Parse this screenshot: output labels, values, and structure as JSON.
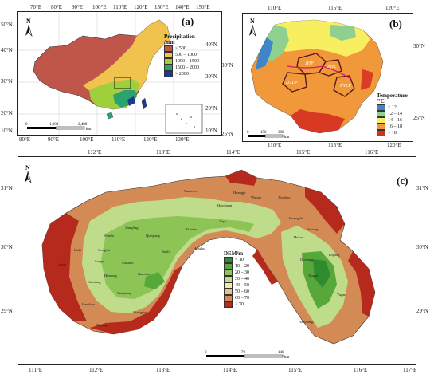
{
  "panels": {
    "a": {
      "label": "(a)",
      "top_coords": [
        "70°E",
        "80°E",
        "90°E",
        "100°E",
        "110°E",
        "120°E",
        "130°E",
        "140°E",
        "150°E"
      ],
      "bottom_coords": [
        "80°E",
        "90°E",
        "100°E",
        "110°E",
        "120°E",
        "130°E"
      ],
      "left_coords": [
        "50°N",
        "40°N",
        "30°N",
        "20°N",
        "10°N"
      ],
      "right_coords": [
        "40°N",
        "30°N",
        "20°N",
        "10°N"
      ],
      "legend": {
        "title": "Precipitation\n/mm",
        "items": [
          {
            "label": "< 500",
            "color": "#c0554a"
          },
          {
            "label": "500 – 1000",
            "color": "#f0c34e"
          },
          {
            "label": "1000 – 1500",
            "color": "#9fcf3c"
          },
          {
            "label": "1500 – 2000",
            "color": "#2aa36e"
          },
          {
            "label": "> 2000",
            "color": "#1f3a8c"
          }
        ]
      },
      "scale": {
        "labels": [
          "0",
          "1,200",
          "2,400"
        ],
        "unit": "km"
      },
      "north": "N"
    },
    "b": {
      "label": "(b)",
      "top_coords": [
        "110°E",
        "115°E",
        "120°E"
      ],
      "bottom_coords": [
        "110°E",
        "115°E",
        "120°E"
      ],
      "left_coords": [
        "30°N",
        "25°N"
      ],
      "right_coords": [
        "30°N",
        "25°N"
      ],
      "regions": [
        "JHP",
        "DTLP",
        "EHL",
        "PYLP"
      ],
      "legend": {
        "title": "Temperature\n/°C",
        "items": [
          {
            "label": "< 12",
            "color": "#3f86c9"
          },
          {
            "label": "12 – 14",
            "color": "#8fcf8f"
          },
          {
            "label": "14 – 16",
            "color": "#f7ef5f"
          },
          {
            "label": "16 – 18",
            "color": "#f0983a"
          },
          {
            "label": "> 18",
            "color": "#d62d20"
          }
        ]
      },
      "scale": {
        "labels": [
          "0",
          "150",
          "300"
        ],
        "unit": "km"
      },
      "north": "N"
    },
    "c": {
      "label": "(c)",
      "top_coords": [
        "112°E",
        "113°E",
        "114°E",
        "115°E",
        "116°E"
      ],
      "bottom_coords": [
        "111°E",
        "112°E",
        "113°E",
        "114°E",
        "115°E",
        "116°E",
        "117°E"
      ],
      "left_coords": [
        "31°N",
        "30°N",
        "29°N"
      ],
      "right_coords": [
        "31°N",
        "30°N",
        "29°N"
      ],
      "legend": {
        "title": "DEM/m",
        "items": [
          {
            "label": "< 10",
            "color": "#2e8b2e"
          },
          {
            "label": "10 – 20",
            "color": "#57a83b"
          },
          {
            "label": "20 – 30",
            "color": "#8cc456"
          },
          {
            "label": "30 – 40",
            "color": "#bfdc8a"
          },
          {
            "label": "40 – 50",
            "color": "#ecebb2"
          },
          {
            "label": "50 – 60",
            "color": "#e8c48c"
          },
          {
            "label": "60 – 70",
            "color": "#d48a55"
          },
          {
            "label": "> 70",
            "color": "#b52a1c"
          }
        ]
      },
      "scale": {
        "labels": [
          "0",
          "70",
          "140"
        ],
        "unit": "km"
      },
      "north": "N",
      "places": [
        "Yuanmen",
        "Hanchuan",
        "Jiangling",
        "Shashi",
        "Qianjiang",
        "Xiantao",
        "Gong'an",
        "Jianli",
        "Honghu",
        "Songzi",
        "Shishou",
        "Huarong",
        "Nanxian",
        "Yuanjiang",
        "Xiangyin",
        "Hanshou",
        "Yiyang",
        "Linli",
        "Lixian",
        "Anxiang",
        "Jiayu",
        "Wuhan",
        "Huangpi",
        "Xinzhou",
        "Huangshi",
        "Poyang",
        "Yugan",
        "Nanchang",
        "Duchang",
        "Hukou",
        "Jiujiang",
        "Xingzi"
      ]
    }
  }
}
